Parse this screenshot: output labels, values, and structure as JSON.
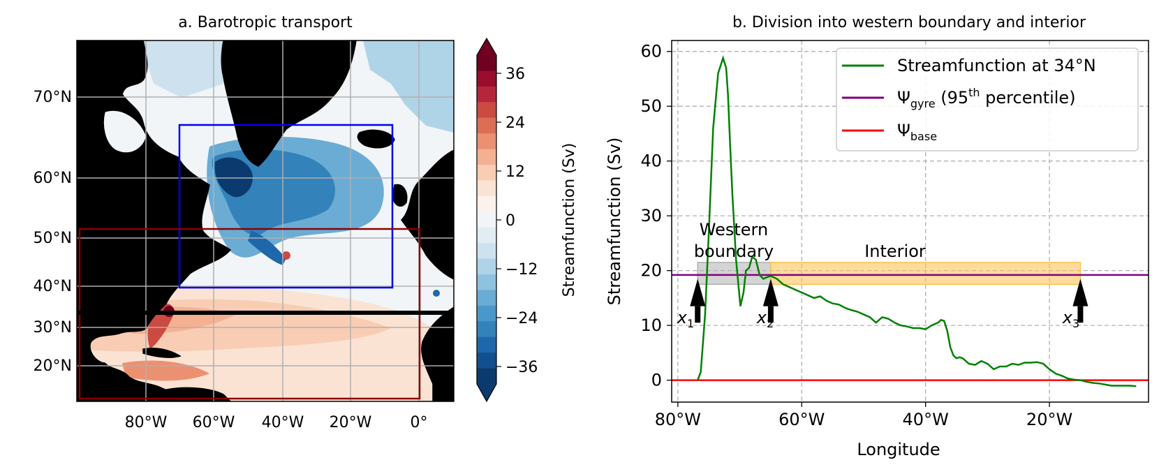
{
  "panel_a": {
    "title": "a. Barotropic transport",
    "lat_labels": [
      "70°N",
      "60°N",
      "50°N",
      "40°N",
      "30°N",
      "20°N"
    ],
    "lon_labels": [
      "80°W",
      "60°W",
      "40°W",
      "20°W",
      "0°"
    ],
    "colorbar": {
      "label": "Streamfunction (Sv)",
      "ticks": [
        "36",
        "24",
        "12",
        "0",
        "−12",
        "−24",
        "−36"
      ],
      "colors": [
        "#0b3a6e",
        "#134f8f",
        "#1f67ab",
        "#3382ba",
        "#4a98c9",
        "#6aacd4",
        "#8fc2de",
        "#b0d4e7",
        "#cde2ee",
        "#e1edf3",
        "#f1f5f8",
        "#fbf2ec",
        "#fbe3d4",
        "#f9cdb4",
        "#f4b192",
        "#eb9172",
        "#dc6e57",
        "#cb4a42",
        "#b6263a",
        "#980e2c",
        "#6f0021"
      ]
    },
    "colors": {
      "land": "#7f7f7f",
      "blue_box": "#0000ee",
      "red_box": "#8b0000",
      "line_34N": "#000000"
    }
  },
  "chart_data": {
    "type": "line",
    "title": "b. Division into western boundary and interior",
    "xlabel": "Longitude",
    "ylabel": "Streamfunction (Sv)",
    "xlim": [
      -81,
      -4
    ],
    "ylim": [
      -4,
      62
    ],
    "xticks": [
      -80,
      -60,
      -40,
      -20
    ],
    "xtick_labels": [
      "80°W",
      "60°W",
      "40°W",
      "20°W"
    ],
    "yticks": [
      0,
      10,
      20,
      30,
      40,
      50,
      60
    ],
    "grid": true,
    "legend_position": "top-right",
    "series": [
      {
        "name": "Streamfunction at 34°N",
        "color": "#008000",
        "x": [
          -76.8,
          -76.3,
          -75.6,
          -75.0,
          -74.3,
          -73.5,
          -72.7,
          -72.2,
          -71.9,
          -71.6,
          -71.2,
          -70.6,
          -69.9,
          -69.4,
          -69.0,
          -68.5,
          -68.0,
          -67.4,
          -66.8,
          -66.2,
          -65.6,
          -65.0,
          -64.0,
          -63.0,
          -62.0,
          -61.0,
          -60.0,
          -59.0,
          -58.0,
          -57.0,
          -56.0,
          -55.0,
          -54.0,
          -53.0,
          -52.0,
          -51.0,
          -50.0,
          -49.0,
          -48.0,
          -47.0,
          -46.0,
          -45.0,
          -44.0,
          -43.0,
          -42.0,
          -41.0,
          -40.0,
          -39.0,
          -38.0,
          -37.5,
          -37.0,
          -36.5,
          -36.0,
          -35.5,
          -35.0,
          -34.5,
          -34.0,
          -33.0,
          -32.0,
          -31.0,
          -30.0,
          -29.0,
          -28.0,
          -27.0,
          -26.0,
          -25.0,
          -24.0,
          -23.0,
          -22.0,
          -21.0,
          -20.0,
          -19.0,
          -18.0,
          -17.0,
          -16.0,
          -15.0,
          -14.0,
          -13.0,
          -12.0,
          -11.0,
          -10.0,
          -9.0,
          -8.0,
          -7.0,
          -6.0
        ],
        "y": [
          0,
          1.5,
          12,
          27,
          46,
          56,
          58.8,
          57,
          52,
          44,
          34,
          22,
          13.5,
          16,
          20,
          20.5,
          22.5,
          22,
          19.2,
          18.5,
          18.8,
          19,
          18.5,
          17.5,
          17,
          16.5,
          16,
          15.5,
          15,
          15.3,
          14.5,
          14,
          13.8,
          13.2,
          12.8,
          12.5,
          12,
          11.5,
          10.5,
          11.5,
          11.2,
          10.5,
          10,
          9.8,
          9.5,
          9.5,
          9.3,
          10,
          10.5,
          11,
          10.8,
          9,
          6,
          4.5,
          4,
          4.2,
          4,
          3,
          2.8,
          3.5,
          3,
          2,
          2.5,
          2.5,
          3,
          2.8,
          3.2,
          3.2,
          3.3,
          3,
          2,
          1.2,
          0.8,
          0.3,
          0.1,
          0,
          -0.3,
          -0.5,
          -0.6,
          -0.8,
          -1,
          -1,
          -1,
          -1,
          -1.1
        ]
      },
      {
        "name": "Ψgyre (95th percentile)",
        "color": "#800080",
        "y": 19.2
      },
      {
        "name": "Ψbase",
        "color": "#ff0000",
        "y": 0
      }
    ],
    "legend": [
      {
        "main": "Streamfunction at 34°N",
        "sub": "",
        "mid": "",
        "sup": "",
        "tail": ""
      },
      {
        "main": "Ψ",
        "sub": "gyre",
        "mid": " (95",
        "sup": "th",
        "tail": " percentile)"
      },
      {
        "main": "Ψ",
        "sub": "base",
        "mid": "",
        "sup": "",
        "tail": ""
      }
    ],
    "regions": [
      {
        "name": "Western boundary",
        "x0": -76.8,
        "x1": -65.0,
        "y0": 17.5,
        "y1": 21.5,
        "color": "#b0b0b0"
      },
      {
        "name": "Interior",
        "x0": -65.0,
        "x1": -15.0,
        "y0": 17.5,
        "y1": 21.5,
        "color": "#ffc04d"
      }
    ],
    "region_labels": [
      "Western",
      "boundary",
      "Interior"
    ],
    "markers": [
      {
        "base": "x",
        "sub": "1",
        "x": -76.8
      },
      {
        "base": "x",
        "sub": "2",
        "x": -65.0
      },
      {
        "base": "x",
        "sub": "3",
        "x": -15.0
      }
    ]
  }
}
